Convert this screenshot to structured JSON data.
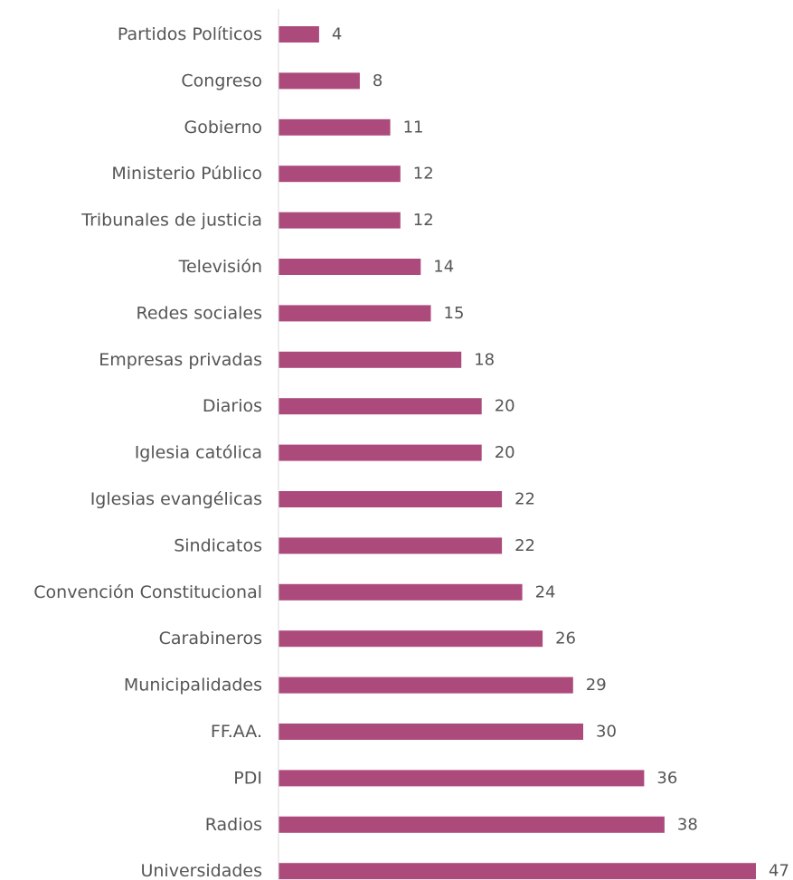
{
  "chart_data": {
    "type": "bar",
    "orientation": "horizontal",
    "categories": [
      "Partidos Políticos",
      "Congreso",
      "Gobierno",
      "Ministerio Público",
      "Tribunales de justicia",
      "Televisión",
      "Redes sociales",
      "Empresas privadas",
      "Diarios",
      "Iglesia católica",
      "Iglesias evangélicas",
      "Sindicatos",
      "Convención Constitucional",
      "Carabineros",
      "Municipalidades",
      "FF.AA.",
      "PDI",
      "Radios",
      "Universidades"
    ],
    "series": [
      {
        "values": [
          4,
          8,
          11,
          12,
          12,
          14,
          15,
          18,
          20,
          20,
          22,
          22,
          24,
          26,
          29,
          30,
          36,
          38,
          47
        ],
        "color": "#ac4a7c"
      }
    ],
    "value_labels": [
      "4",
      "8",
      "11",
      "12",
      "12",
      "14",
      "15",
      "18",
      "20",
      "20",
      "22",
      "22",
      "24",
      "26",
      "29",
      "30",
      "36",
      "38",
      "47"
    ],
    "title": "",
    "xlabel": "",
    "ylabel": "",
    "xlim": [
      0,
      47
    ],
    "grid": false,
    "legend": "none",
    "axis_color": "#d9d9d9",
    "label_color": "#555555"
  }
}
